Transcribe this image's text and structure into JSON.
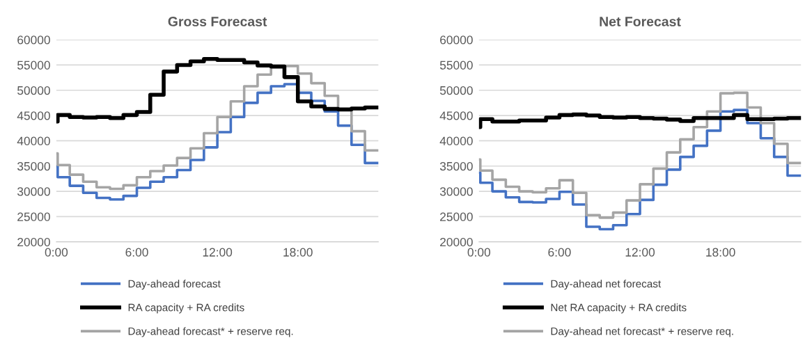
{
  "chart_data": [
    {
      "type": "step",
      "title": "Gross Forecast",
      "x": [
        0,
        0.1,
        1,
        2,
        3,
        4,
        5,
        6,
        7,
        8,
        9,
        10,
        11,
        12,
        13,
        14,
        15,
        16,
        17,
        18,
        19,
        20,
        21,
        22,
        23,
        24
      ],
      "xlim": [
        0,
        24
      ],
      "xticks": [
        {
          "value": 0,
          "label": "0:00"
        },
        {
          "value": 6,
          "label": "6:00"
        },
        {
          "value": 12,
          "label": "12:00"
        },
        {
          "value": 18,
          "label": "18:00"
        }
      ],
      "ylim": [
        20000,
        60000
      ],
      "yticks": [
        20000,
        25000,
        30000,
        35000,
        40000,
        45000,
        50000,
        55000,
        60000
      ],
      "grid": "y",
      "legend": "bottom",
      "line_style": "solid",
      "marker": "none",
      "series": [
        {
          "name": "Day-ahead forecast",
          "color": "#4472c4",
          "values": [
            35000,
            32800,
            31100,
            29700,
            28700,
            28400,
            29100,
            30700,
            31900,
            32800,
            34200,
            36200,
            38700,
            41700,
            44700,
            47500,
            49500,
            50800,
            51200,
            49500,
            47900,
            45800,
            43000,
            39200,
            35600,
            35600
          ]
        },
        {
          "name": "RA capacity + RA credits",
          "color": "#000000",
          "values": [
            43800,
            45100,
            44700,
            44600,
            44700,
            44500,
            45100,
            45700,
            49100,
            53700,
            55000,
            55700,
            56200,
            56000,
            56000,
            55500,
            54900,
            54700,
            52600,
            47800,
            46800,
            46300,
            46200,
            46400,
            46600,
            46600
          ]
        },
        {
          "name": "Day-ahead forecast* + reserve req.",
          "color": "#a5a5a5",
          "values": [
            37500,
            35200,
            33300,
            31900,
            30800,
            30500,
            31200,
            32800,
            34000,
            35100,
            36600,
            38500,
            41500,
            44700,
            47800,
            50800,
            53100,
            54600,
            54800,
            53300,
            51400,
            48900,
            46100,
            41900,
            38100,
            38100
          ]
        }
      ]
    },
    {
      "type": "step",
      "title": "Net Forecast",
      "x": [
        0,
        0.1,
        1,
        2,
        3,
        4,
        5,
        6,
        7,
        8,
        9,
        10,
        11,
        12,
        13,
        14,
        15,
        16,
        17,
        18,
        19,
        20,
        21,
        22,
        23,
        24
      ],
      "xlim": [
        0,
        24
      ],
      "xticks": [
        {
          "value": 0,
          "label": "0:00"
        },
        {
          "value": 6,
          "label": "6:00"
        },
        {
          "value": 12,
          "label": "12:00"
        },
        {
          "value": 18,
          "label": "18:00"
        }
      ],
      "ylim": [
        20000,
        60000
      ],
      "yticks": [
        20000,
        25000,
        30000,
        35000,
        40000,
        45000,
        50000,
        55000,
        60000
      ],
      "grid": "y",
      "legend": "bottom",
      "line_style": "solid",
      "marker": "none",
      "series": [
        {
          "name": "Day-ahead net forecast",
          "color": "#4472c4",
          "values": [
            33700,
            31700,
            30000,
            28800,
            27900,
            27800,
            28500,
            29900,
            27400,
            23000,
            22500,
            23300,
            25500,
            28300,
            31300,
            34300,
            36800,
            39000,
            42000,
            45800,
            46100,
            43500,
            40500,
            36800,
            33100,
            33100
          ]
        },
        {
          "name": "Net RA capacity + RA credits",
          "color": "#000000",
          "values": [
            42700,
            44300,
            43800,
            43800,
            44000,
            44000,
            44600,
            45100,
            45200,
            45000,
            44700,
            44600,
            44700,
            44500,
            44400,
            44200,
            43900,
            44500,
            44500,
            44500,
            45100,
            44300,
            44300,
            44400,
            44500,
            44500
          ]
        },
        {
          "name": "Day-ahead net forecast* + reserve req.",
          "color": "#a5a5a5",
          "values": [
            36300,
            34100,
            32300,
            30900,
            30000,
            29800,
            30600,
            32200,
            29700,
            25300,
            24800,
            25800,
            28200,
            31400,
            34500,
            37700,
            40300,
            42700,
            45800,
            49400,
            49500,
            46600,
            43500,
            39400,
            35600,
            35600
          ]
        }
      ]
    }
  ]
}
